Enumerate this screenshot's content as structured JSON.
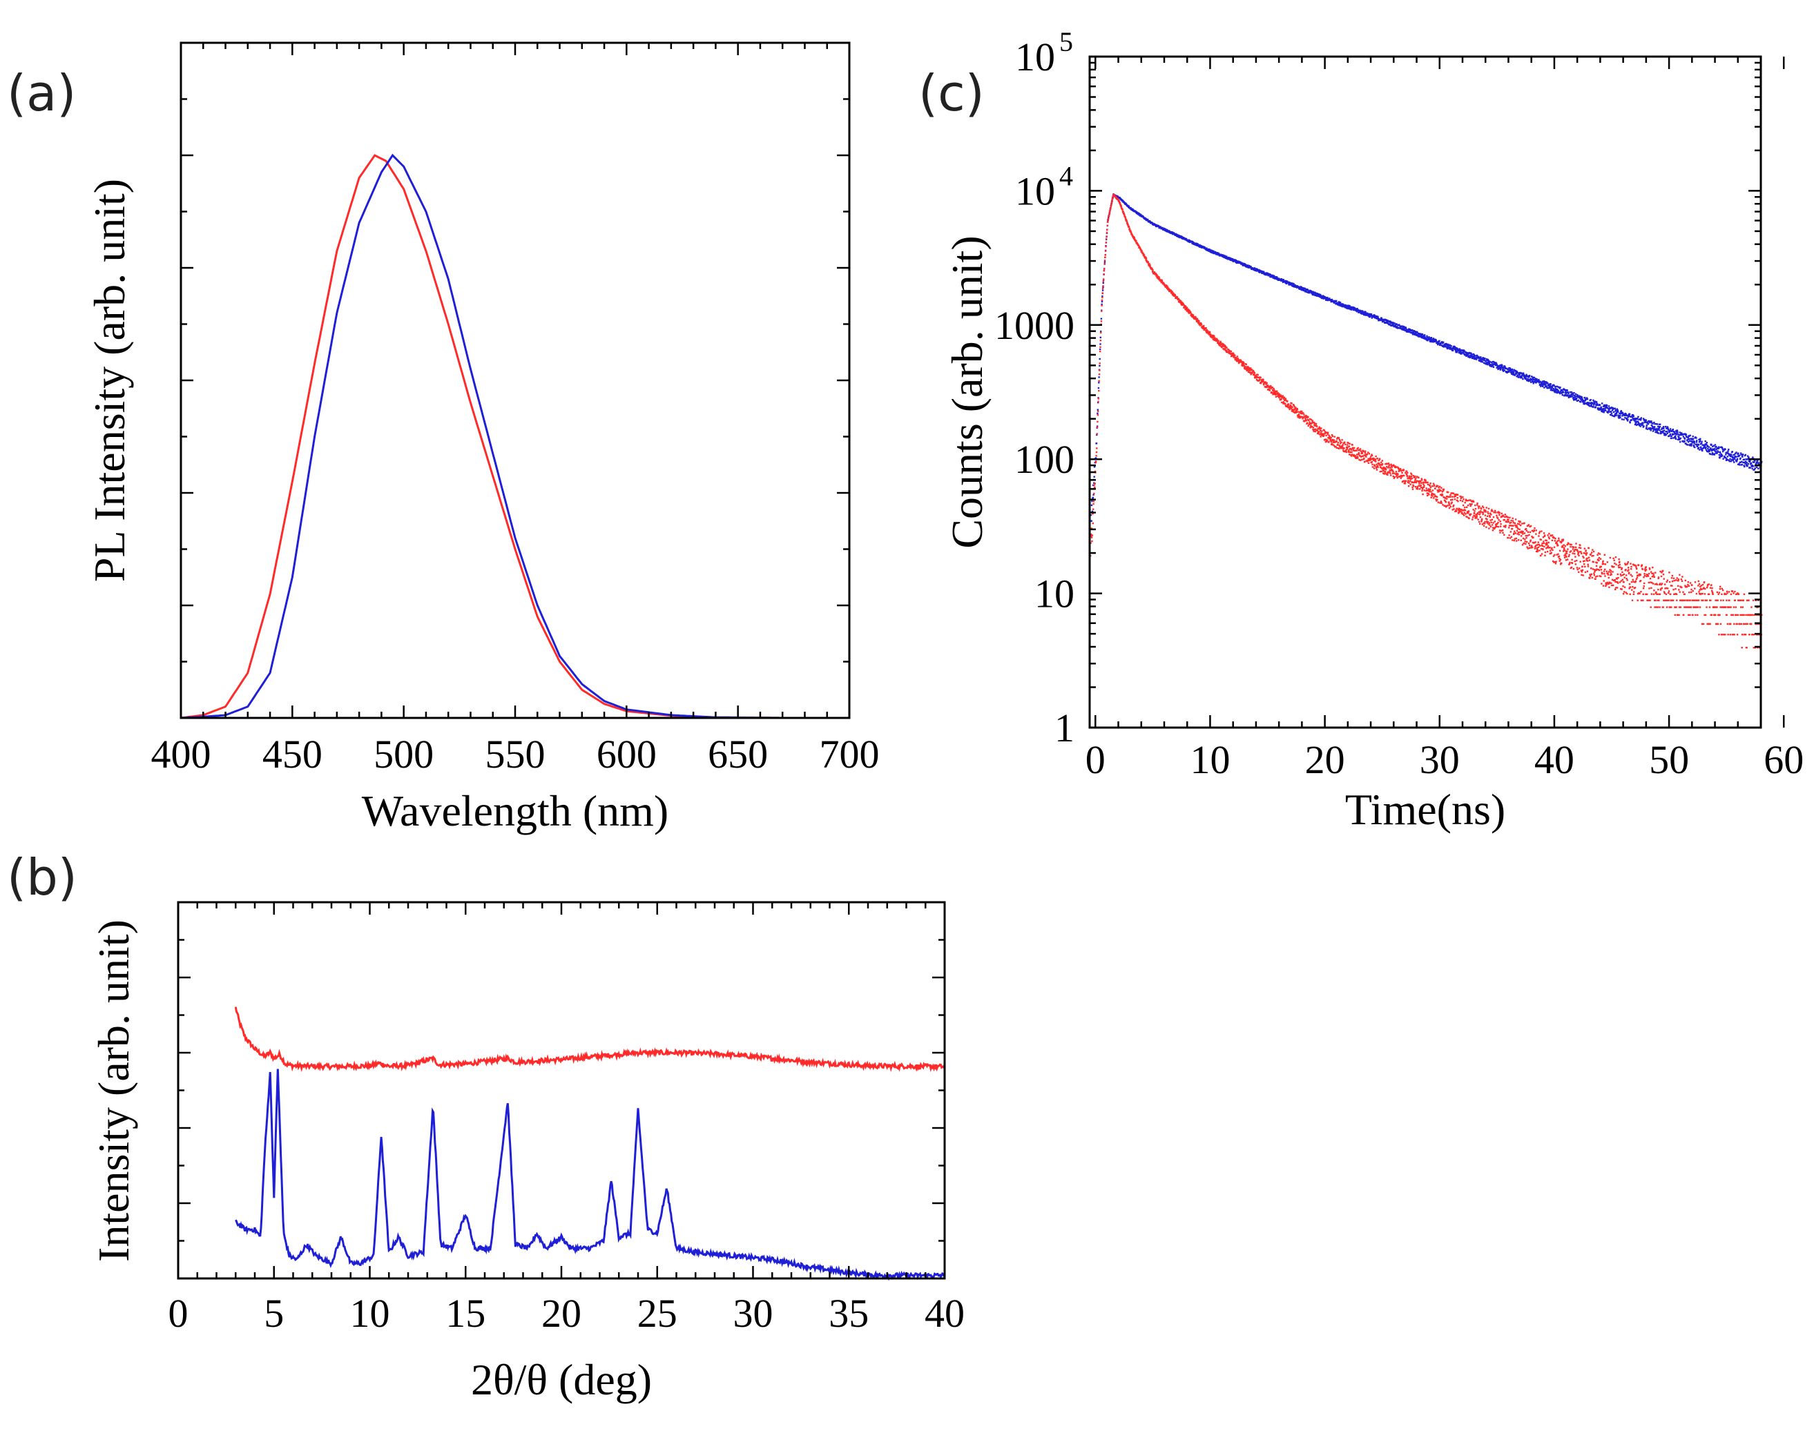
{
  "panels": [
    {
      "label": "(a)"
    },
    {
      "label": "(b)"
    },
    {
      "label": "(c)"
    }
  ],
  "colors": {
    "red": "#ff2a2a",
    "blue": "#1f1fd6"
  },
  "chart_data": [
    {
      "type": "line",
      "xlabel": "Wavelength (nm)",
      "ylabel": "PL Intensity (arb. unit)",
      "xlim": [
        400,
        700
      ],
      "ylim": [
        0,
        1.2
      ],
      "xticks": [
        400,
        450,
        500,
        550,
        600,
        650,
        700
      ],
      "grid": false,
      "series": [
        {
          "color": "red",
          "x": [
            400,
            410,
            420,
            430,
            440,
            450,
            460,
            470,
            480,
            487,
            492,
            500,
            510,
            520,
            530,
            540,
            550,
            560,
            570,
            580,
            590,
            600,
            620,
            640,
            670
          ],
          "y": [
            0.0,
            0.005,
            0.02,
            0.08,
            0.22,
            0.42,
            0.63,
            0.83,
            0.96,
            1.0,
            0.99,
            0.94,
            0.83,
            0.7,
            0.56,
            0.43,
            0.3,
            0.18,
            0.1,
            0.05,
            0.025,
            0.012,
            0.004,
            0.001,
            0.0
          ]
        },
        {
          "color": "blue",
          "x": [
            400,
            410,
            420,
            430,
            440,
            450,
            460,
            470,
            480,
            490,
            495,
            500,
            510,
            520,
            530,
            540,
            550,
            560,
            570,
            580,
            590,
            600,
            620,
            640,
            670
          ],
          "y": [
            0.0,
            0.002,
            0.005,
            0.02,
            0.08,
            0.25,
            0.5,
            0.72,
            0.88,
            0.97,
            1.0,
            0.98,
            0.9,
            0.78,
            0.62,
            0.47,
            0.32,
            0.2,
            0.11,
            0.06,
            0.03,
            0.015,
            0.005,
            0.001,
            0.0
          ]
        }
      ]
    },
    {
      "type": "line",
      "xlabel": "2θ/θ (deg)",
      "ylabel": "Intensity (arb. unit)",
      "xlim": [
        0,
        40
      ],
      "ylim": [
        0,
        1.0
      ],
      "xticks": [
        0,
        5,
        10,
        15,
        20,
        25,
        30,
        35,
        40
      ],
      "grid": false,
      "series": [
        {
          "color": "red",
          "x": [
            3.0,
            3.2,
            3.5,
            4.0,
            4.5,
            4.8,
            5.0,
            5.3,
            5.6,
            6.0,
            8,
            10,
            10.5,
            11,
            12,
            13.3,
            13.6,
            15,
            17.2,
            17.6,
            20,
            24,
            26,
            28,
            30,
            33,
            36,
            40
          ],
          "y": [
            0.72,
            0.68,
            0.64,
            0.61,
            0.59,
            0.6,
            0.585,
            0.595,
            0.57,
            0.565,
            0.563,
            0.565,
            0.572,
            0.564,
            0.566,
            0.585,
            0.568,
            0.57,
            0.585,
            0.575,
            0.582,
            0.6,
            0.6,
            0.597,
            0.59,
            0.575,
            0.565,
            0.563
          ]
        },
        {
          "color": "blue",
          "x": [
            3.0,
            3.5,
            4.0,
            4.3,
            4.5,
            4.8,
            5.0,
            5.2,
            5.5,
            5.8,
            6.2,
            6.7,
            7.2,
            8.0,
            8.5,
            9.0,
            9.5,
            10.2,
            10.6,
            11.0,
            11.5,
            12.0,
            12.8,
            13.3,
            13.7,
            14.3,
            15.0,
            15.5,
            16.3,
            17.2,
            17.6,
            18.3,
            18.7,
            19.2,
            20.0,
            20.5,
            21.5,
            22.2,
            22.6,
            23.0,
            23.6,
            24.0,
            24.5,
            25.0,
            25.5,
            26.0,
            27.0,
            29.0,
            31.0,
            33.0,
            35.0,
            36.5,
            40.0
          ],
          "y": [
            0.15,
            0.13,
            0.13,
            0.11,
            0.32,
            0.55,
            0.22,
            0.56,
            0.12,
            0.06,
            0.05,
            0.09,
            0.06,
            0.04,
            0.11,
            0.04,
            0.04,
            0.06,
            0.38,
            0.07,
            0.11,
            0.06,
            0.07,
            0.46,
            0.09,
            0.08,
            0.17,
            0.08,
            0.08,
            0.47,
            0.09,
            0.08,
            0.12,
            0.08,
            0.11,
            0.08,
            0.08,
            0.1,
            0.26,
            0.11,
            0.12,
            0.45,
            0.13,
            0.12,
            0.24,
            0.08,
            0.07,
            0.06,
            0.05,
            0.03,
            0.015,
            0.008,
            0.008
          ]
        }
      ]
    },
    {
      "type": "scatter",
      "xlabel": "Time(ns)",
      "ylabel": "Counts (arb. unit)",
      "xlim": [
        -0.5,
        58
      ],
      "ylim": [
        1,
        100000
      ],
      "yscale": "log",
      "xticks": [
        0,
        10,
        20,
        30,
        40,
        50,
        60
      ],
      "yticks": [
        1,
        10,
        100,
        1000,
        10000,
        100000
      ],
      "ytick_labels": [
        "1",
        "10",
        "100",
        "1000",
        "10^4",
        "10^5"
      ],
      "grid": false,
      "series": [
        {
          "color": "blue",
          "x": [
            -0.5,
            0,
            0.5,
            1.0,
            1.5,
            2.0,
            3,
            5,
            10,
            15,
            20,
            25,
            30,
            35,
            40,
            45,
            50,
            55,
            58
          ],
          "y": [
            30,
            120,
            1500,
            6000,
            9500,
            9000,
            7500,
            5700,
            3600,
            2400,
            1600,
            1100,
            740,
            500,
            340,
            230,
            160,
            110,
            90
          ]
        },
        {
          "color": "red",
          "x": [
            -0.5,
            0,
            0.5,
            1.0,
            1.5,
            2.0,
            3,
            5,
            8,
            10,
            15,
            20,
            25,
            30,
            35,
            40,
            45,
            50,
            55,
            58
          ],
          "y": [
            20,
            100,
            1500,
            6000,
            9500,
            8500,
            5000,
            2500,
            1300,
            850,
            350,
            150,
            90,
            55,
            35,
            22,
            15,
            11,
            8,
            6
          ]
        }
      ]
    }
  ]
}
